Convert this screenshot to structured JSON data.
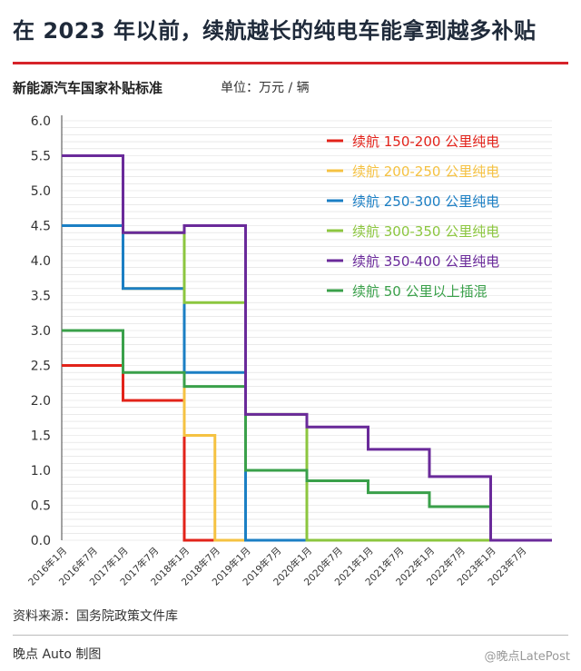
{
  "header": {
    "title": "在 2023 年以前，续航越长的纯电车能拿到越多补贴",
    "subtitle": "新能源汽车国家补贴标准",
    "unit": "单位：万元 / 辆"
  },
  "footer": {
    "source": "资料来源：国务院政策文件库",
    "credit": "晚点 Auto 制图",
    "corner_mark": "@晚点LatePost"
  },
  "colors": {
    "title_rule": "#d6232a",
    "grid": "#dddddd"
  },
  "chart_data": {
    "type": "line",
    "step": true,
    "x_ticks": [
      "2016年1月",
      "2016年7月",
      "2017年1月",
      "2017年7月",
      "2018年1月",
      "2018年7月",
      "2019年1月",
      "2019年7月",
      "2020年1月",
      "2020年7月",
      "2021年1月",
      "2021年7月",
      "2022年1月",
      "2022年7月",
      "2023年1月",
      "2023年7月"
    ],
    "y_ticks": [
      "0.0",
      "0.5",
      "1.0",
      "1.5",
      "2.0",
      "2.5",
      "3.0",
      "3.5",
      "4.0",
      "4.5",
      "5.0",
      "5.5",
      "6.0"
    ],
    "ylim": [
      0,
      6
    ],
    "grid": true,
    "legend_position": "top-right",
    "series": [
      {
        "name": "续航 150-200 公里纯电",
        "color": "#e2231a",
        "points": [
          [
            "2016-01",
            2.5
          ],
          [
            "2016-12",
            2.5
          ],
          [
            "2017-01",
            2.0
          ],
          [
            "2017-12",
            2.0
          ],
          [
            "2018-01",
            0
          ],
          [
            "2023-12",
            0
          ]
        ]
      },
      {
        "name": "续航 200-250 公里纯电",
        "color": "#f5c242",
        "points": [
          [
            "2016-01",
            4.5
          ],
          [
            "2016-12",
            4.5
          ],
          [
            "2017-01",
            3.6
          ],
          [
            "2017-12",
            3.6
          ],
          [
            "2018-01",
            1.5
          ],
          [
            "2018-06",
            1.5
          ],
          [
            "2018-07",
            0
          ],
          [
            "2023-12",
            0
          ]
        ]
      },
      {
        "name": "续航 250-300 公里纯电",
        "color": "#1b7fc4",
        "points": [
          [
            "2016-01",
            4.5
          ],
          [
            "2016-12",
            4.5
          ],
          [
            "2017-01",
            3.6
          ],
          [
            "2017-12",
            3.6
          ],
          [
            "2018-01",
            2.4
          ],
          [
            "2018-12",
            2.4
          ],
          [
            "2019-01",
            0
          ],
          [
            "2023-12",
            0
          ]
        ]
      },
      {
        "name": "续航 300-350 公里纯电",
        "color": "#8cc63f",
        "points": [
          [
            "2016-01",
            5.5
          ],
          [
            "2016-12",
            5.5
          ],
          [
            "2017-01",
            4.4
          ],
          [
            "2017-12",
            4.4
          ],
          [
            "2018-01",
            3.4
          ],
          [
            "2018-12",
            3.4
          ],
          [
            "2019-01",
            1.8
          ],
          [
            "2019-12",
            1.8
          ],
          [
            "2020-01",
            0
          ],
          [
            "2023-12",
            0
          ]
        ]
      },
      {
        "name": "续航 350-400 公里纯电",
        "color": "#6a2a9a",
        "points": [
          [
            "2016-01",
            5.5
          ],
          [
            "2016-12",
            5.5
          ],
          [
            "2017-01",
            4.4
          ],
          [
            "2017-12",
            4.4
          ],
          [
            "2018-01",
            4.5
          ],
          [
            "2018-12",
            4.5
          ],
          [
            "2019-01",
            1.8
          ],
          [
            "2019-12",
            1.8
          ],
          [
            "2020-01",
            1.62
          ],
          [
            "2020-12",
            1.62
          ],
          [
            "2021-01",
            1.3
          ],
          [
            "2021-12",
            1.3
          ],
          [
            "2022-01",
            0.91
          ],
          [
            "2022-12",
            0.91
          ],
          [
            "2023-01",
            0
          ],
          [
            "2023-12",
            0
          ]
        ]
      },
      {
        "name": "续航  50  公里以上插混",
        "color": "#3aa04a",
        "points": [
          [
            "2016-01",
            3.0
          ],
          [
            "2016-12",
            3.0
          ],
          [
            "2017-01",
            2.4
          ],
          [
            "2017-12",
            2.4
          ],
          [
            "2018-01",
            2.2
          ],
          [
            "2018-12",
            2.2
          ],
          [
            "2019-01",
            1.0
          ],
          [
            "2019-12",
            1.0
          ],
          [
            "2020-01",
            0.85
          ],
          [
            "2020-12",
            0.85
          ],
          [
            "2021-01",
            0.68
          ],
          [
            "2021-12",
            0.68
          ],
          [
            "2022-01",
            0.48
          ],
          [
            "2022-12",
            0.48
          ],
          [
            "2023-01",
            0
          ],
          [
            "2023-12",
            0
          ]
        ]
      }
    ]
  }
}
